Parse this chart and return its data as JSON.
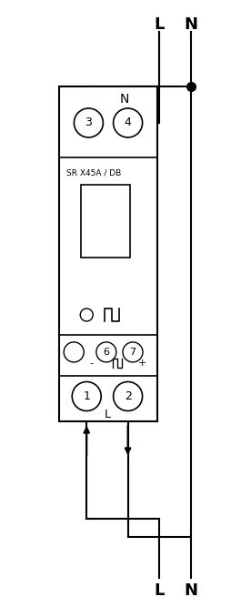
{
  "fig_width": 2.55,
  "fig_height": 6.67,
  "bg_color": "#ffffff",
  "line_color": "#000000",
  "title_label": "SR X45A / DB",
  "neutral_label": "N",
  "L_label": "L",
  "top_L": "L",
  "top_N": "N",
  "bot_L": "L",
  "bot_N": "N"
}
